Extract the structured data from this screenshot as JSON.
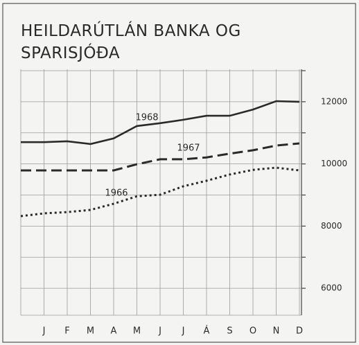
{
  "chart_data": {
    "type": "line",
    "title": "HEILDARÚTLÁN BANKA OG",
    "subtitle": "SPARISJÓÐA",
    "categories": [
      null,
      "J",
      "F",
      "M",
      "A",
      "M",
      "J",
      "J",
      "Á",
      "S",
      "O",
      "N",
      "D"
    ],
    "series": [
      {
        "name": "1968",
        "color": "#2a2a2a",
        "style": "solid",
        "values": [
          10700,
          10700,
          10730,
          10640,
          10820,
          11220,
          11310,
          11420,
          11550,
          11550,
          11750,
          12020,
          12000
        ]
      },
      {
        "name": "1967",
        "color": "#2a2a2a",
        "style": "dashed",
        "values": [
          9790,
          9790,
          9790,
          9790,
          9790,
          9990,
          10150,
          10150,
          10210,
          10330,
          10440,
          10590,
          10660
        ]
      },
      {
        "name": "1966",
        "color": "#2a2a2a",
        "style": "dotted",
        "values": [
          8320,
          8410,
          8450,
          8520,
          8720,
          8960,
          9010,
          9280,
          9460,
          9660,
          9810,
          9880,
          9790
        ]
      }
    ],
    "ylim": [
      5000,
      13000
    ],
    "yticks": [
      6000,
      8000,
      10000,
      12000
    ],
    "minor_yticks": [
      7000,
      9000,
      11000,
      13000
    ],
    "grid": true,
    "y_axis_side": "right"
  }
}
